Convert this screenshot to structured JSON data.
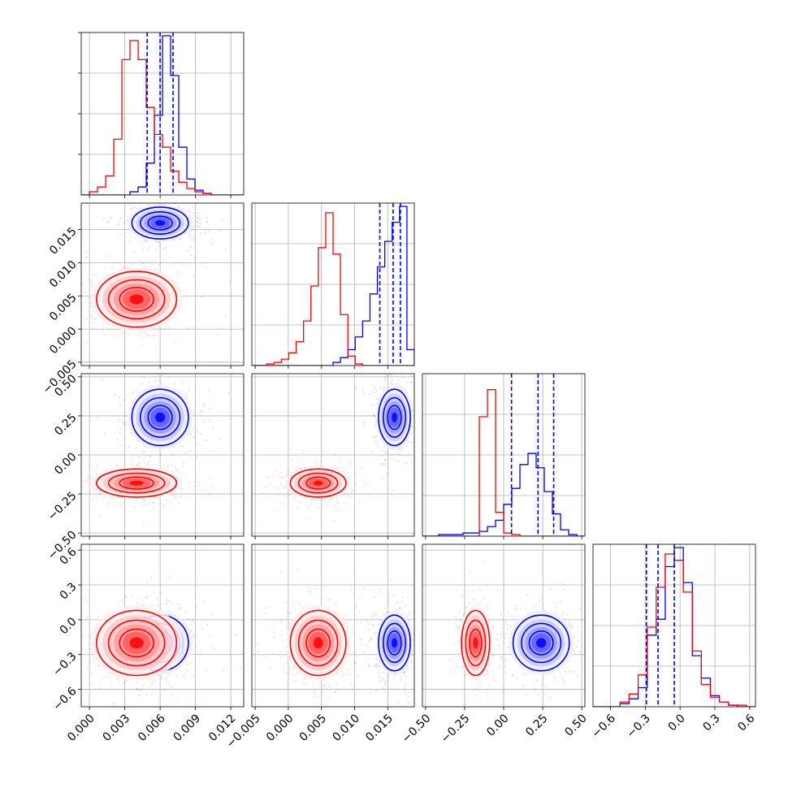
{
  "colors": {
    "blue": "#0000ff",
    "red": "#ff0000",
    "grid": "#b0b0b0",
    "axes": "#000000",
    "blue_fill": [
      "#f0f0ff",
      "#c8c8ff",
      "#9a9aff",
      "#5a5aff",
      "#0000ff"
    ],
    "red_fill": [
      "#fff0f0",
      "#ffc8c8",
      "#ff9a9a",
      "#ff5a5a",
      "#ff0000"
    ]
  },
  "chart_data": {
    "type": "corner",
    "parameters": 4,
    "grid": true,
    "tick_labels": {
      "p0": [
        "0.000",
        "0.003",
        "0.006",
        "0.009",
        "0.012"
      ],
      "p1": [
        "−0.005",
        "0.000",
        "0.005",
        "0.010",
        "0.015"
      ],
      "p2": [
        "−0.50",
        "−0.25",
        "0.00",
        "0.25",
        "0.50"
      ],
      "p3": [
        "−0.6",
        "−0.3",
        "0.0",
        "0.3",
        "0.6"
      ]
    },
    "ticks": {
      "p0": [
        0,
        0.003,
        0.006,
        0.009,
        0.012
      ],
      "p1": [
        -0.005,
        0,
        0.005,
        0.01,
        0.015
      ],
      "p2": [
        -0.5,
        -0.25,
        0,
        0.25,
        0.5
      ],
      "p3": [
        -0.6,
        -0.3,
        0,
        0.3,
        0.6
      ]
    },
    "ranges": {
      "p0": [
        -0.0007,
        0.0131
      ],
      "p1": [
        -0.0055,
        0.019
      ],
      "p2": [
        -0.52,
        0.52
      ],
      "p3": [
        -0.75,
        0.65
      ]
    },
    "quantile_lines": {
      "p0": [
        0.0049,
        0.006,
        0.0071
      ],
      "p1": [
        0.0138,
        0.0158,
        0.0169
      ],
      "p2": [
        0.05,
        0.22,
        0.32
      ],
      "p3": [
        -0.29,
        -0.19,
        -0.05
      ]
    },
    "series": [
      {
        "color": "blue",
        "hist": {
          "p0": [
            0,
            0,
            0,
            0,
            0,
            0,
            0.02,
            0.05,
            0.2,
            0.5,
            1.0,
            0.75,
            0.3,
            0.1,
            0.03,
            0.01,
            0,
            0,
            0,
            0
          ],
          "p1": [
            0,
            0,
            0,
            0,
            0,
            0,
            0,
            0,
            0,
            0,
            0,
            0.02,
            0.05,
            0.1,
            0.18,
            0.28,
            0.45,
            0.62,
            0.78,
            0.9,
            1.0,
            0.1
          ],
          "p2": [
            0,
            0,
            0.01,
            0.01,
            0.01,
            0.02,
            0.02,
            0.03,
            0.06,
            0.1,
            0.2,
            0.3,
            0.45,
            0.52,
            0.43,
            0.28,
            0.14,
            0.04,
            0.01,
            0
          ],
          "p3": [
            0,
            0,
            0,
            0.02,
            0.05,
            0.12,
            0.45,
            0.55,
            0.88,
            1.0,
            0.78,
            0.32,
            0.18,
            0.07,
            0.03,
            0.01,
            0,
            0
          ]
        },
        "center": {
          "p0": 0.006,
          "p1": 0.016,
          "p2": 0.24,
          "p3": -0.2
        },
        "sigma": {
          "p0": 0.0012,
          "p1": 0.0012,
          "p2": 0.09,
          "p3": 0.12
        }
      },
      {
        "color": "red",
        "hist": {
          "p0": [
            0,
            0.02,
            0.05,
            0.12,
            0.35,
            0.85,
            0.97,
            0.85,
            0.55,
            0.38,
            0.3,
            0.15,
            0.08,
            0.04,
            0.02,
            0.01,
            0,
            0,
            0,
            0
          ],
          "p1": [
            0,
            0,
            0.01,
            0.02,
            0.04,
            0.08,
            0.15,
            0.28,
            0.5,
            0.74,
            0.96,
            0.7,
            0.32,
            0.06,
            0.01,
            0,
            0,
            0,
            0,
            0,
            0,
            0
          ],
          "p2": [
            0,
            0,
            0,
            0,
            0,
            0,
            0,
            0.75,
            0.92,
            0.15,
            0.02,
            0.01,
            0,
            0,
            0,
            0,
            0,
            0,
            0,
            0
          ],
          "p3": [
            0,
            0,
            0,
            0.03,
            0.08,
            0.2,
            0.5,
            0.75,
            0.96,
            0.92,
            0.72,
            0.35,
            0.14,
            0.06,
            0.03,
            0.01,
            0.01,
            0
          ]
        },
        "center": {
          "p0": 0.004,
          "p1": 0.0045,
          "p2": -0.18,
          "p3": -0.2
        },
        "sigma": {
          "p0": 0.0017,
          "p1": 0.0021,
          "p2": 0.045,
          "p3": 0.14
        }
      }
    ]
  }
}
